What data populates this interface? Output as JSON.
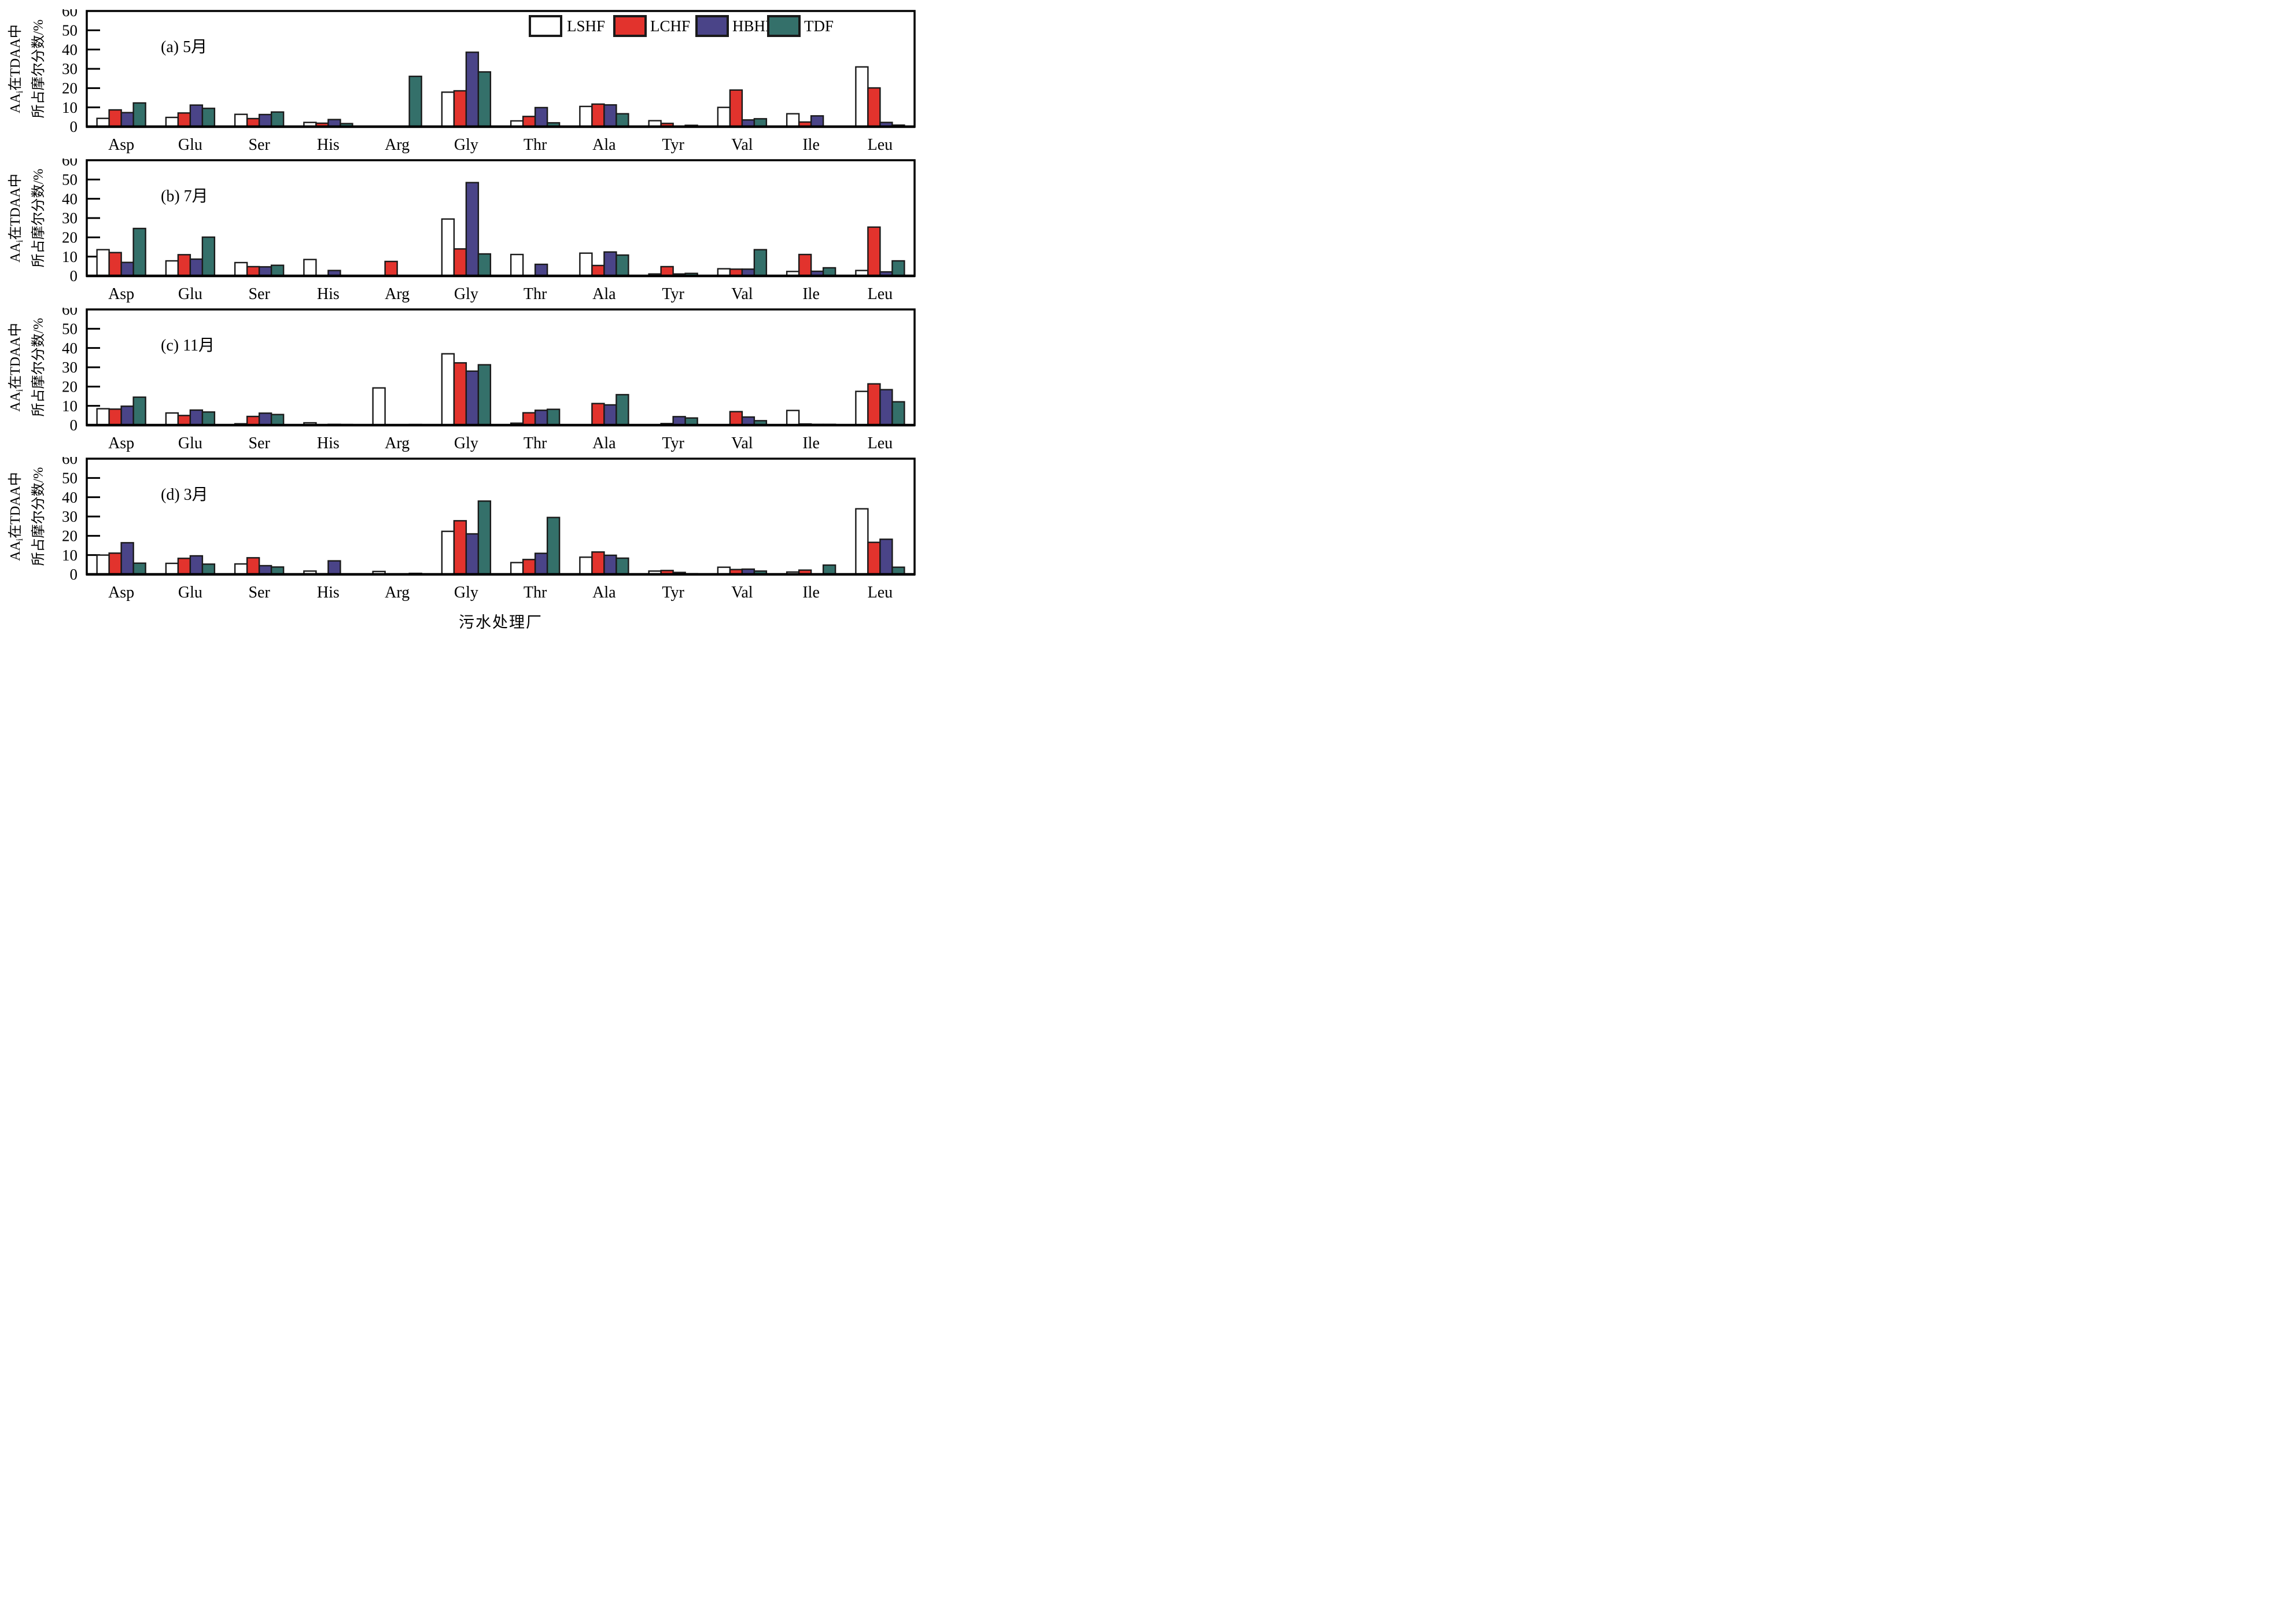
{
  "colors": {
    "background": "#FFFFFF",
    "axis_stroke": "#000000",
    "bar_stroke": "#1A1A1A",
    "lshf": "#FFFFFF",
    "lchf": "#E2332D",
    "hbhf": "#4A4488",
    "tdf": "#34706A"
  },
  "chart_data": {
    "type": "bar",
    "grouped": true,
    "grid": false,
    "categories": [
      "Asp",
      "Glu",
      "Ser",
      "His",
      "Arg",
      "Gly",
      "Thr",
      "Ala",
      "Tyr",
      "Val",
      "Ile",
      "Leu"
    ],
    "xlabel": "污水处理厂",
    "ylabel": {
      "line1_prefix": "AA",
      "line1_sub": "i",
      "line1_rest": "在TDAA中",
      "line2": "所占摩尔分数/%"
    },
    "ylim": [
      0,
      60
    ],
    "yticks": [
      "0",
      "10",
      "20",
      "30",
      "40",
      "50",
      "60"
    ],
    "legend": {
      "position": "top-right-inside-first-panel",
      "items": [
        {
          "label": "LSHF",
          "color": "#FFFFFF"
        },
        {
          "label": "LCHF",
          "color": "#E2332D"
        },
        {
          "label": "HBHF",
          "color": "#4A4488"
        },
        {
          "label": "TDF",
          "color": "#34706A"
        }
      ]
    },
    "panels": [
      {
        "id": "a",
        "title": "(a) 5月",
        "series": [
          {
            "name": "LSHF",
            "color": "#FFFFFF",
            "values": [
              4.3,
              4.8,
              6.4,
              2.2,
              0,
              17.9,
              3.0,
              10.5,
              3.1,
              10.0,
              6.7,
              31.0
            ]
          },
          {
            "name": "LCHF",
            "color": "#E2332D",
            "values": [
              8.7,
              7.1,
              4.2,
              1.8,
              0,
              18.6,
              5.3,
              11.7,
              1.7,
              19.0,
              2.4,
              20.1
            ]
          },
          {
            "name": "HBHF",
            "color": "#4A4488",
            "values": [
              7.3,
              11.2,
              6.3,
              3.7,
              0,
              38.6,
              9.9,
              11.3,
              0,
              3.5,
              5.6,
              2.2
            ]
          },
          {
            "name": "TDF",
            "color": "#34706A",
            "values": [
              12.3,
              9.5,
              7.6,
              1.6,
              26.1,
              28.4,
              2.0,
              6.7,
              0.7,
              4.1,
              0,
              0.8
            ]
          }
        ]
      },
      {
        "id": "b",
        "title": "(b) 7月",
        "series": [
          {
            "name": "LSHF",
            "color": "#FFFFFF",
            "values": [
              13.6,
              7.8,
              6.9,
              8.5,
              0.2,
              29.5,
              11.1,
              11.8,
              1.0,
              3.7,
              2.3,
              2.8
            ]
          },
          {
            "name": "LCHF",
            "color": "#E2332D",
            "values": [
              12.1,
              11.0,
              4.8,
              0,
              7.5,
              14.0,
              0,
              5.4,
              4.8,
              3.5,
              11.1,
              25.3
            ]
          },
          {
            "name": "HBHF",
            "color": "#4A4488",
            "values": [
              7.0,
              8.7,
              4.7,
              2.8,
              0,
              48.4,
              6.0,
              12.4,
              1.0,
              3.5,
              2.4,
              2.1
            ]
          },
          {
            "name": "TDF",
            "color": "#34706A",
            "values": [
              24.6,
              20.1,
              5.5,
              0,
              0.2,
              11.4,
              0,
              10.8,
              1.3,
              13.6,
              4.2,
              7.8
            ]
          }
        ]
      },
      {
        "id": "c",
        "title": "(c) 11月",
        "series": [
          {
            "name": "LSHF",
            "color": "#FFFFFF",
            "values": [
              8.5,
              6.3,
              0.7,
              1.2,
              19.3,
              37.0,
              1.0,
              0,
              0.2,
              0,
              7.6,
              17.5
            ]
          },
          {
            "name": "LCHF",
            "color": "#E2332D",
            "values": [
              8.3,
              5.0,
              4.5,
              0,
              0,
              32.3,
              6.4,
              11.2,
              0.8,
              7.0,
              0.6,
              21.4
            ]
          },
          {
            "name": "HBHF",
            "color": "#4A4488",
            "values": [
              9.8,
              7.8,
              6.2,
              0.4,
              0.2,
              28.0,
              7.7,
              10.5,
              4.4,
              4.2,
              0.4,
              18.4
            ]
          },
          {
            "name": "TDF",
            "color": "#34706A",
            "values": [
              14.5,
              6.8,
              5.5,
              0.3,
              0.3,
              31.3,
              8.2,
              15.8,
              3.7,
              2.3,
              0.4,
              12.1
            ]
          }
        ]
      },
      {
        "id": "d",
        "title": "(d) 3月",
        "series": [
          {
            "name": "LSHF",
            "color": "#FFFFFF",
            "values": [
              10.0,
              5.7,
              5.4,
              1.7,
              1.5,
              22.3,
              6.1,
              8.9,
              1.7,
              3.7,
              1.2,
              34.0
            ]
          },
          {
            "name": "LCHF",
            "color": "#E2332D",
            "values": [
              11.0,
              8.3,
              8.6,
              0.3,
              0.2,
              27.8,
              7.7,
              11.6,
              2.0,
              2.5,
              2.2,
              16.6
            ]
          },
          {
            "name": "HBHF",
            "color": "#4A4488",
            "values": [
              16.4,
              9.6,
              4.5,
              7.0,
              0.2,
              21.0,
              10.9,
              9.9,
              1.0,
              2.7,
              0,
              18.2
            ]
          },
          {
            "name": "TDF",
            "color": "#34706A",
            "values": [
              5.8,
              5.3,
              3.8,
              0,
              0.5,
              38.0,
              29.5,
              8.4,
              0.3,
              1.7,
              4.8,
              3.7
            ]
          }
        ]
      }
    ]
  }
}
